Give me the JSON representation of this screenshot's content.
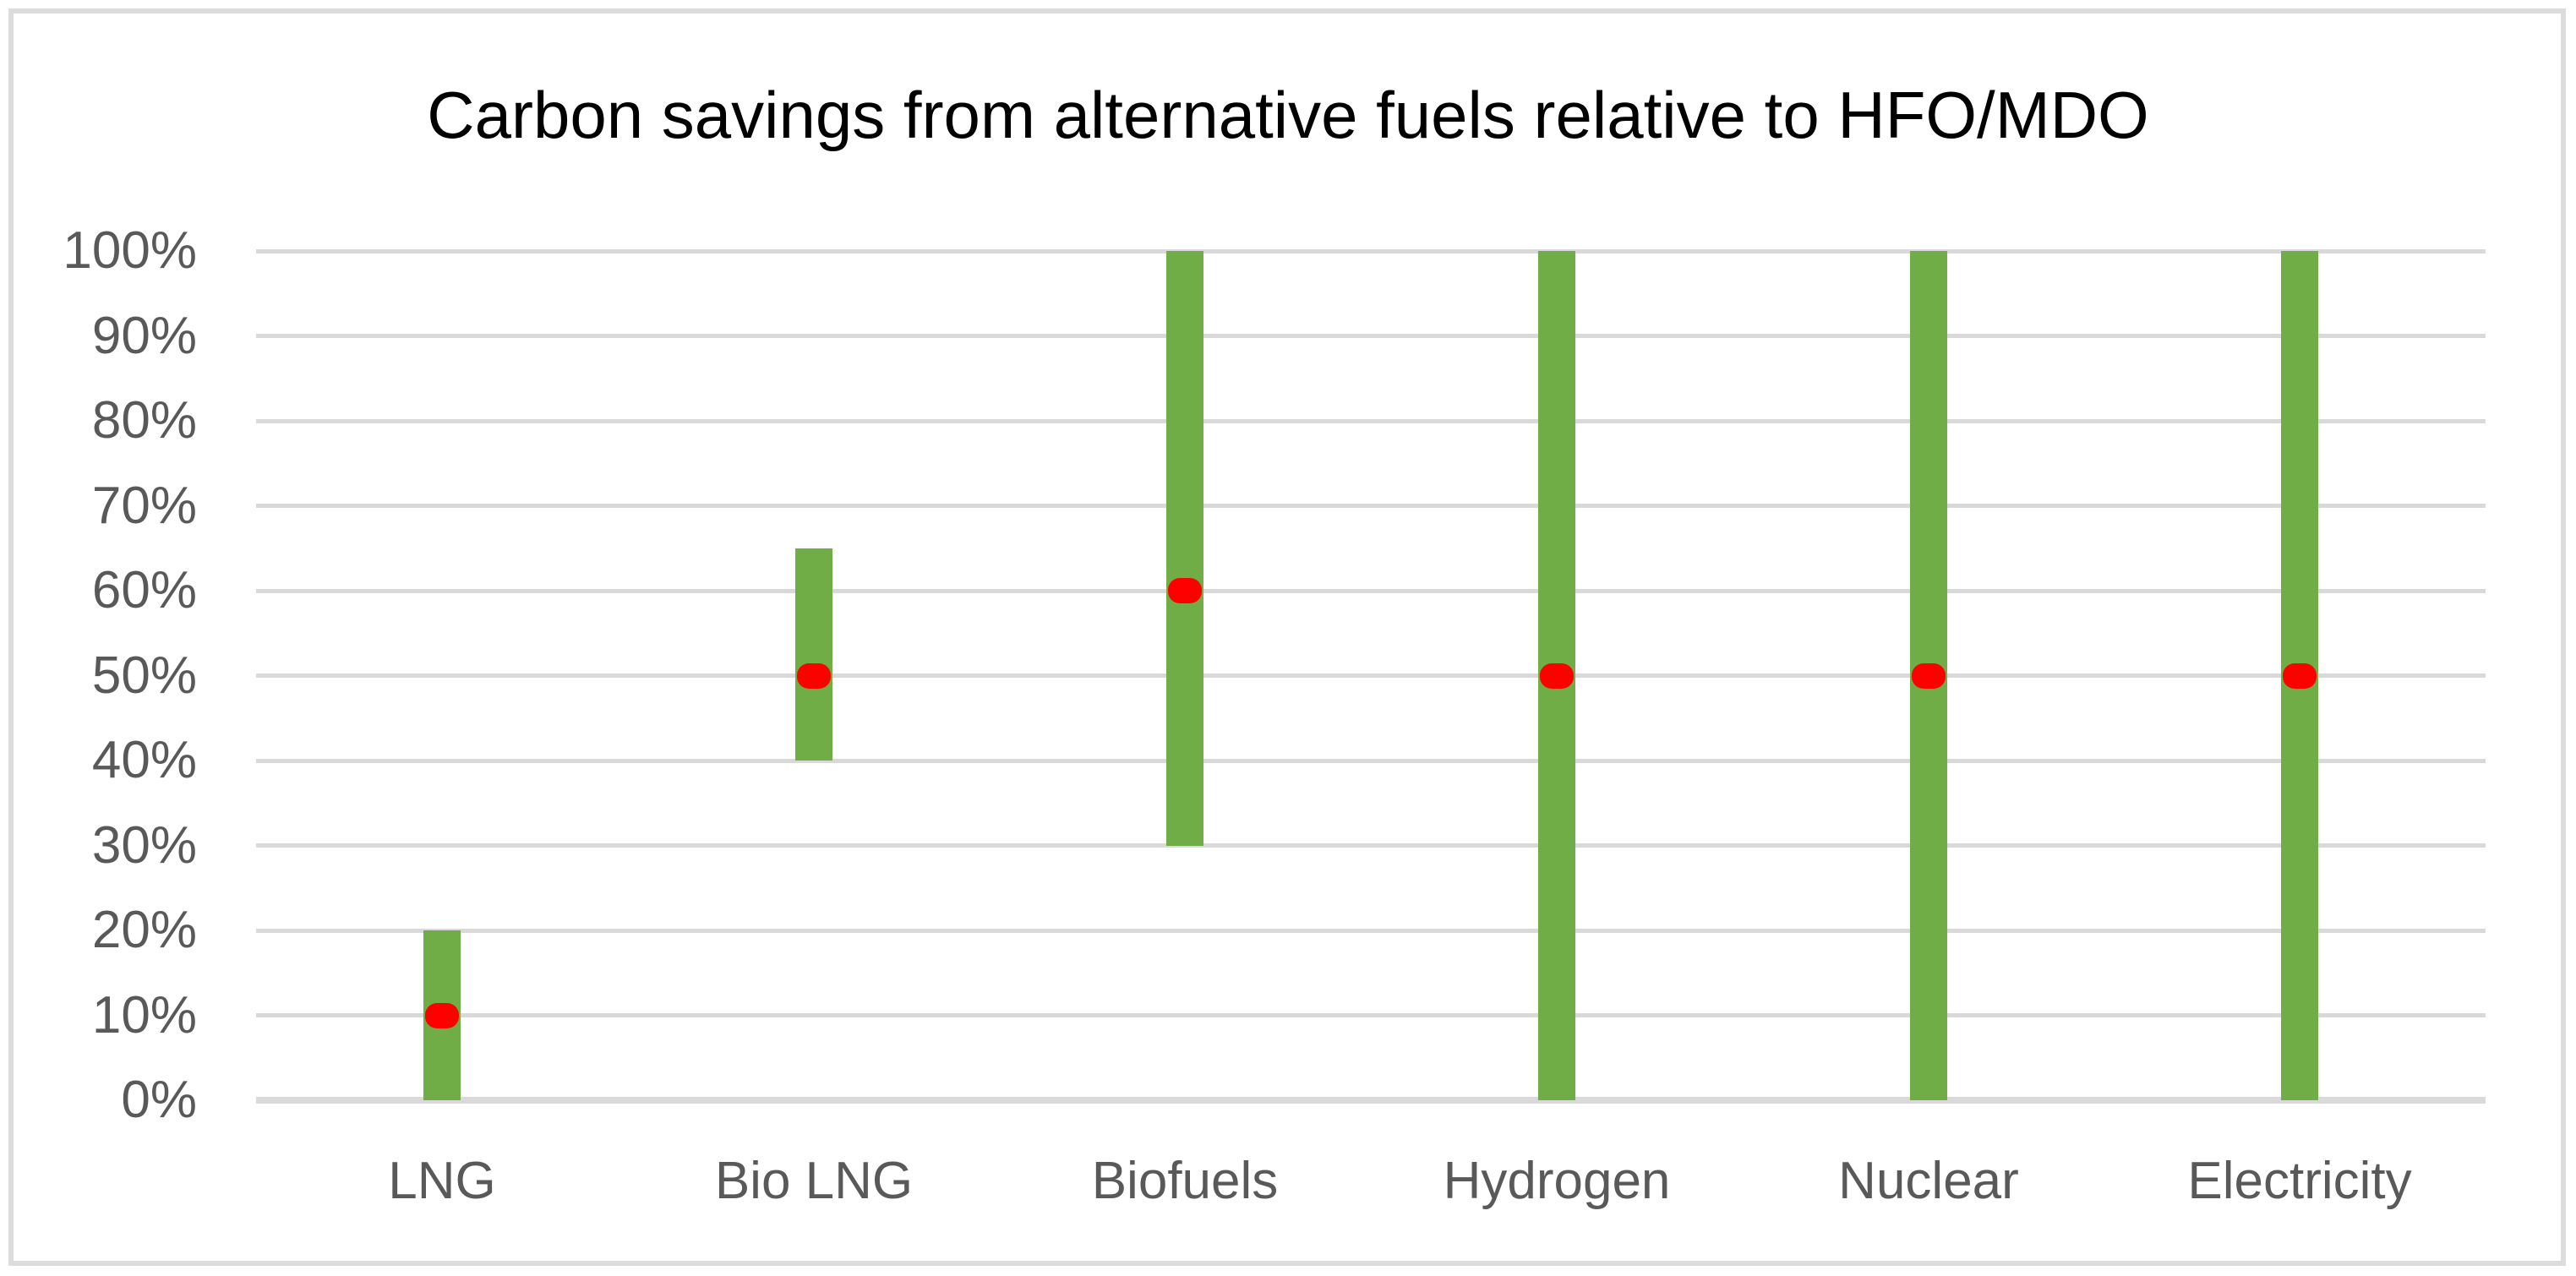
{
  "chart_data": {
    "type": "bar",
    "subtype": "floating-range-bars-with-point-markers",
    "title": "Carbon savings from alternative fuels relative to HFO/MDO",
    "categories": [
      "LNG",
      "Bio LNG",
      "Biofuels",
      "Hydrogen",
      "Nuclear",
      "Electricity"
    ],
    "series": [
      {
        "name": "range",
        "type": "floating-bar",
        "low": [
          0,
          40,
          30,
          0,
          0,
          0
        ],
        "high": [
          20,
          65,
          100,
          100,
          100,
          100
        ],
        "color": "#70AD47"
      },
      {
        "name": "marker",
        "type": "point",
        "values": [
          10,
          50,
          60,
          50,
          50,
          50
        ],
        "color": "#FF0000"
      }
    ],
    "unit": "%",
    "xlabel": "",
    "ylabel": "",
    "ylim": [
      0,
      100
    ],
    "yticks": [
      {
        "value": 0,
        "label": "0%"
      },
      {
        "value": 10,
        "label": "10%"
      },
      {
        "value": 20,
        "label": "20%"
      },
      {
        "value": 30,
        "label": "30%"
      },
      {
        "value": 40,
        "label": "40%"
      },
      {
        "value": 50,
        "label": "50%"
      },
      {
        "value": 60,
        "label": "60%"
      },
      {
        "value": 70,
        "label": "70%"
      },
      {
        "value": 80,
        "label": "80%"
      },
      {
        "value": 90,
        "label": "90%"
      },
      {
        "value": 100,
        "label": "100%"
      }
    ],
    "grid": true,
    "legend": "none",
    "colors": {
      "bar": "#70AD47",
      "marker": "#FF0000",
      "gridline": "#D9D9D9",
      "axis_line": "#D9D9D9",
      "axis_text": "#595959",
      "title_text": "#000000",
      "frame_border": "#DCDCDC",
      "background": "#FFFFFF"
    }
  }
}
